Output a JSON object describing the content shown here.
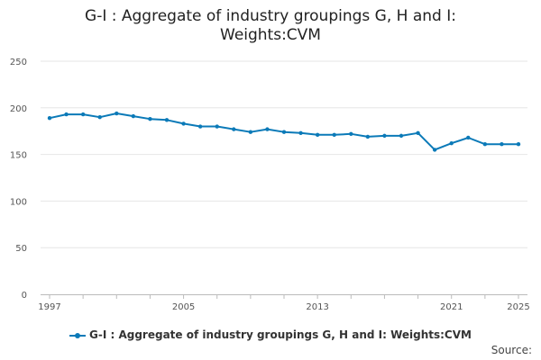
{
  "chart_data": {
    "type": "line",
    "title": "G-I : Aggregate of industry groupings G, H and I: Weights:CVM",
    "title_lines": [
      "G-I : Aggregate of industry groupings G, H and I:",
      "Weights:CVM"
    ],
    "xlabel": "",
    "ylabel": "",
    "xlim": [
      1997,
      2025
    ],
    "ylim": [
      0,
      250
    ],
    "y_ticks": [
      0,
      50,
      100,
      150,
      200,
      250
    ],
    "x_tick_labels": [
      1997,
      2005,
      2013,
      2021,
      2025
    ],
    "grid": true,
    "legend_position": "bottom",
    "series": [
      {
        "name": "G-I : Aggregate of industry groupings G, H and I: Weights:CVM",
        "color": "#0b7ab8",
        "x": [
          1997,
          1998,
          1999,
          2000,
          2001,
          2002,
          2003,
          2004,
          2005,
          2006,
          2007,
          2008,
          2009,
          2010,
          2011,
          2012,
          2013,
          2014,
          2015,
          2016,
          2017,
          2018,
          2019,
          2020,
          2021,
          2022,
          2023,
          2024,
          2025
        ],
        "values": [
          189,
          193,
          193,
          190,
          194,
          191,
          188,
          187,
          183,
          180,
          180,
          177,
          174,
          177,
          174,
          173,
          171,
          171,
          172,
          169,
          170,
          170,
          173,
          155,
          162,
          168,
          161,
          161,
          161
        ]
      }
    ]
  },
  "footer": {
    "source_label": "Source:"
  }
}
